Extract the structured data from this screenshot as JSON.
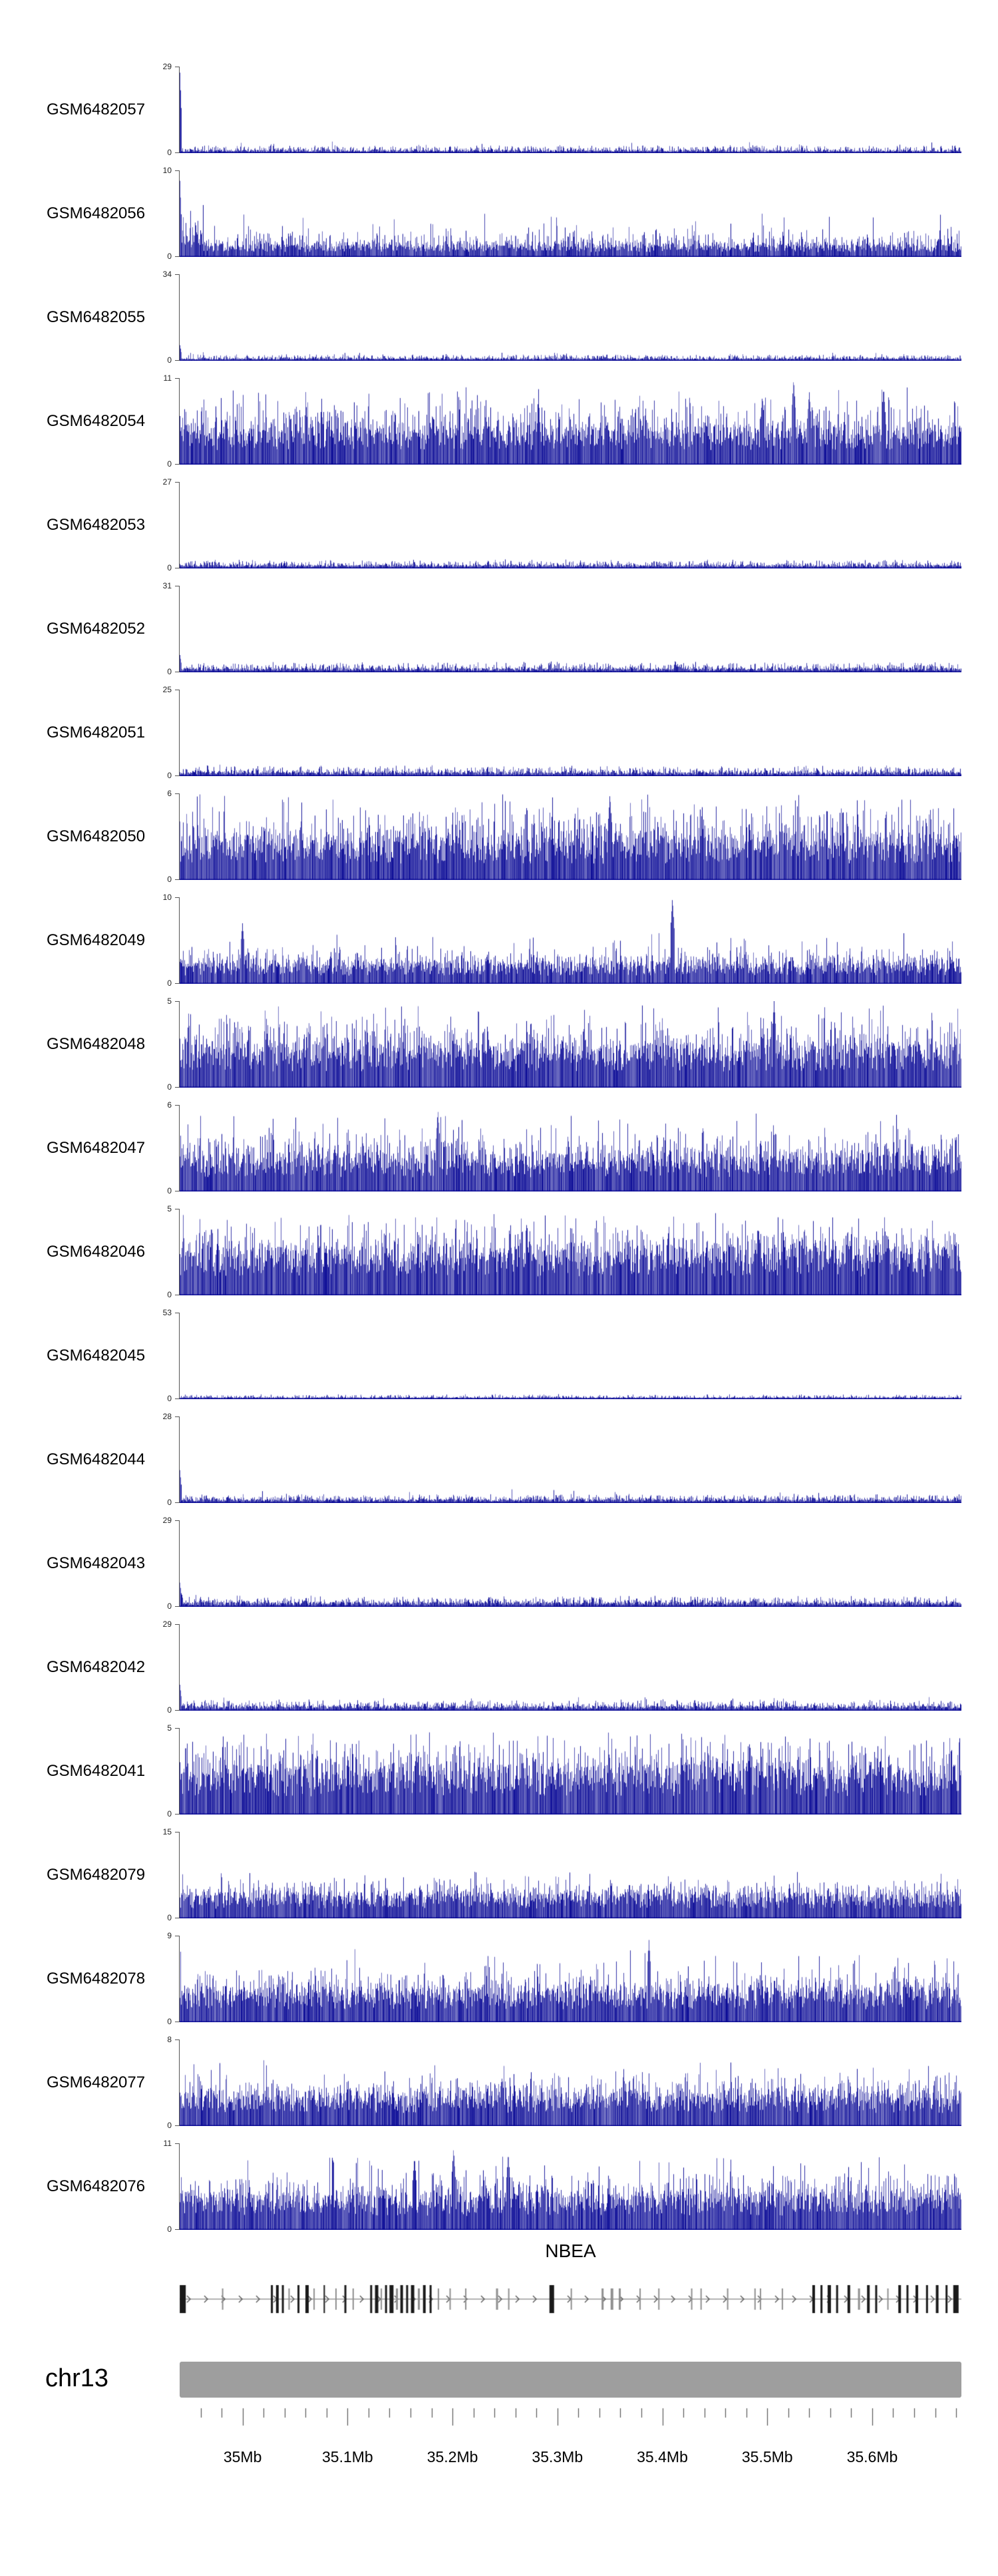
{
  "chart_data": {
    "type": "area",
    "signal_color_rgb": [
      10,
      10,
      150
    ],
    "region": {
      "chromosome": "chr13",
      "start_mb": 34.94,
      "end_mb": 35.685,
      "unit": "Mb"
    },
    "x_axis": {
      "tick_labels": [
        "35Mb",
        "35.1Mb",
        "35.2Mb",
        "35.3Mb",
        "35.4Mb",
        "35.5Mb",
        "35.6Mb"
      ],
      "tick_values_mb": [
        35.0,
        35.1,
        35.2,
        35.3,
        35.4,
        35.5,
        35.6
      ],
      "minor_tick_step_mb": 0.02,
      "minor_tick_start_mb": 34.96,
      "minor_tick_count": 37
    },
    "y_axis": {
      "min_label": "0"
    },
    "tracks": [
      {
        "name": "GSM6482057",
        "ymax": 29,
        "ymin": 0,
        "profile": {
          "base": 0.022,
          "spread": 0.05,
          "tall_prob": 0.012,
          "tall_max": 0.14,
          "left_spike": 0.93,
          "peaks": []
        }
      },
      {
        "name": "GSM6482056",
        "ymax": 10,
        "ymin": 0,
        "profile": {
          "base": 0.1,
          "spread": 0.14,
          "tall_prob": 0.05,
          "tall_max": 0.5,
          "left_spike": 0.88,
          "left_boost": [
            0.03,
            1.9
          ],
          "peaks": []
        }
      },
      {
        "name": "GSM6482055",
        "ymax": 34,
        "ymin": 0,
        "profile": {
          "base": 0.02,
          "spread": 0.04,
          "tall_prob": 0.008,
          "tall_max": 0.1,
          "left_spike": 0.18,
          "peaks": []
        }
      },
      {
        "name": "GSM6482054",
        "ymax": 11,
        "ymin": 0,
        "profile": {
          "base": 0.3,
          "spread": 0.3,
          "tall_prob": 0.07,
          "tall_max": 0.92,
          "peaks": [
            [
              0.745,
              0.8
            ],
            [
              0.785,
              1.0
            ],
            [
              0.805,
              0.85
            ],
            [
              0.9,
              0.9
            ]
          ]
        }
      },
      {
        "name": "GSM6482053",
        "ymax": 27,
        "ymin": 0,
        "profile": {
          "base": 0.028,
          "spread": 0.05,
          "tall_prob": 0.01,
          "tall_max": 0.11,
          "peaks": []
        }
      },
      {
        "name": "GSM6482052",
        "ymax": 31,
        "ymin": 0,
        "profile": {
          "base": 0.032,
          "spread": 0.06,
          "tall_prob": 0.012,
          "tall_max": 0.13,
          "left_spike": 0.2,
          "peaks": []
        }
      },
      {
        "name": "GSM6482051",
        "ymax": 25,
        "ymin": 0,
        "profile": {
          "base": 0.032,
          "spread": 0.06,
          "tall_prob": 0.012,
          "tall_max": 0.14,
          "peaks": []
        }
      },
      {
        "name": "GSM6482050",
        "ymax": 6,
        "ymin": 0,
        "profile": {
          "base": 0.34,
          "spread": 0.32,
          "tall_prob": 0.09,
          "tall_max": 1.0,
          "peaks": [
            [
              0.55,
              1.0
            ]
          ]
        }
      },
      {
        "name": "GSM6482049",
        "ymax": 10,
        "ymin": 0,
        "profile": {
          "base": 0.17,
          "spread": 0.16,
          "tall_prob": 0.05,
          "tall_max": 0.6,
          "peaks": [
            [
              0.08,
              0.7
            ],
            [
              0.63,
              1.0
            ]
          ]
        }
      },
      {
        "name": "GSM6482048",
        "ymax": 5,
        "ymin": 0,
        "profile": {
          "base": 0.34,
          "spread": 0.3,
          "tall_prob": 0.08,
          "tall_max": 0.95,
          "peaks": [
            [
              0.76,
              1.0
            ]
          ]
        }
      },
      {
        "name": "GSM6482047",
        "ymax": 6,
        "ymin": 0,
        "profile": {
          "base": 0.3,
          "spread": 0.26,
          "tall_prob": 0.07,
          "tall_max": 0.9,
          "peaks": [
            [
              0.33,
              0.95
            ]
          ]
        }
      },
      {
        "name": "GSM6482046",
        "ymax": 5,
        "ymin": 0,
        "profile": {
          "base": 0.38,
          "spread": 0.3,
          "tall_prob": 0.09,
          "tall_max": 0.95,
          "peaks": []
        }
      },
      {
        "name": "GSM6482045",
        "ymax": 53,
        "ymin": 0,
        "profile": {
          "base": 0.014,
          "spread": 0.03,
          "tall_prob": 0.005,
          "tall_max": 0.07,
          "peaks": []
        }
      },
      {
        "name": "GSM6482044",
        "ymax": 28,
        "ymin": 0,
        "profile": {
          "base": 0.03,
          "spread": 0.05,
          "tall_prob": 0.012,
          "tall_max": 0.16,
          "left_spike": 0.38,
          "peaks": []
        }
      },
      {
        "name": "GSM6482043",
        "ymax": 29,
        "ymin": 0,
        "profile": {
          "base": 0.038,
          "spread": 0.06,
          "tall_prob": 0.012,
          "tall_max": 0.14,
          "left_spike": 0.28,
          "peaks": []
        }
      },
      {
        "name": "GSM6482042",
        "ymax": 29,
        "ymin": 0,
        "profile": {
          "base": 0.038,
          "spread": 0.06,
          "tall_prob": 0.014,
          "tall_max": 0.16,
          "left_spike": 0.3,
          "peaks": []
        }
      },
      {
        "name": "GSM6482041",
        "ymax": 5,
        "ymin": 0,
        "profile": {
          "base": 0.38,
          "spread": 0.3,
          "tall_prob": 0.09,
          "tall_max": 0.95,
          "peaks": []
        }
      },
      {
        "name": "GSM6482079",
        "ymax": 15,
        "ymin": 0,
        "profile": {
          "base": 0.2,
          "spread": 0.16,
          "tall_prob": 0.05,
          "tall_max": 0.55,
          "peaks": []
        }
      },
      {
        "name": "GSM6482078",
        "ymax": 9,
        "ymin": 0,
        "profile": {
          "base": 0.27,
          "spread": 0.2,
          "tall_prob": 0.06,
          "tall_max": 0.85,
          "peaks": [
            [
              0.6,
              0.95
            ]
          ]
        }
      },
      {
        "name": "GSM6482077",
        "ymax": 8,
        "ymin": 0,
        "profile": {
          "base": 0.27,
          "spread": 0.2,
          "tall_prob": 0.06,
          "tall_max": 0.8,
          "peaks": []
        }
      },
      {
        "name": "GSM6482076",
        "ymax": 11,
        "ymin": 0,
        "profile": {
          "base": 0.29,
          "spread": 0.22,
          "tall_prob": 0.06,
          "tall_max": 0.85,
          "peaks": [
            [
              0.3,
              0.85
            ],
            [
              0.35,
              0.95
            ],
            [
              0.42,
              0.9
            ]
          ]
        }
      }
    ],
    "gene_track": {
      "label": "NBEA",
      "strand": "+",
      "exon_color": "#1a1a1a",
      "utr_color": "#8f8f8f",
      "line_color": "#999999",
      "arrow_color": "#555555",
      "exons": [
        [
          0.004,
          9,
          0
        ],
        [
          0.055,
          2,
          1
        ],
        [
          0.118,
          3,
          0
        ],
        [
          0.125,
          4,
          0
        ],
        [
          0.132,
          3,
          0
        ],
        [
          0.14,
          2,
          1
        ],
        [
          0.152,
          3,
          0
        ],
        [
          0.163,
          5,
          0
        ],
        [
          0.172,
          2,
          1
        ],
        [
          0.185,
          2,
          0
        ],
        [
          0.2,
          2,
          1
        ],
        [
          0.212,
          3,
          0
        ],
        [
          0.222,
          2,
          1
        ],
        [
          0.245,
          3,
          0
        ],
        [
          0.252,
          5,
          0
        ],
        [
          0.258,
          2,
          1
        ],
        [
          0.264,
          3,
          0
        ],
        [
          0.271,
          6,
          0
        ],
        [
          0.278,
          3,
          1
        ],
        [
          0.284,
          4,
          0
        ],
        [
          0.291,
          3,
          0
        ],
        [
          0.298,
          5,
          0
        ],
        [
          0.306,
          3,
          1
        ],
        [
          0.313,
          4,
          0
        ],
        [
          0.321,
          3,
          0
        ],
        [
          0.331,
          2,
          1
        ],
        [
          0.346,
          2,
          1
        ],
        [
          0.366,
          2,
          1
        ],
        [
          0.406,
          3,
          1
        ],
        [
          0.421,
          2,
          1
        ],
        [
          0.476,
          7,
          0
        ],
        [
          0.501,
          2,
          1
        ],
        [
          0.541,
          3,
          1
        ],
        [
          0.553,
          4,
          1
        ],
        [
          0.563,
          3,
          1
        ],
        [
          0.589,
          2,
          1
        ],
        [
          0.613,
          2,
          1
        ],
        [
          0.655,
          2,
          1
        ],
        [
          0.667,
          2,
          1
        ],
        [
          0.701,
          2,
          1
        ],
        [
          0.736,
          2,
          1
        ],
        [
          0.743,
          2,
          1
        ],
        [
          0.771,
          2,
          1
        ],
        [
          0.811,
          4,
          0
        ],
        [
          0.821,
          3,
          0
        ],
        [
          0.831,
          5,
          0
        ],
        [
          0.841,
          3,
          0
        ],
        [
          0.856,
          4,
          0
        ],
        [
          0.869,
          3,
          1
        ],
        [
          0.881,
          4,
          0
        ],
        [
          0.891,
          3,
          0
        ],
        [
          0.906,
          2,
          1
        ],
        [
          0.921,
          4,
          0
        ],
        [
          0.931,
          3,
          0
        ],
        [
          0.943,
          4,
          0
        ],
        [
          0.956,
          3,
          0
        ],
        [
          0.969,
          4,
          0
        ],
        [
          0.981,
          3,
          0
        ],
        [
          0.993,
          8,
          0
        ]
      ]
    },
    "ideogram": {
      "label": "chr13",
      "color": "#9e9e9e"
    }
  }
}
